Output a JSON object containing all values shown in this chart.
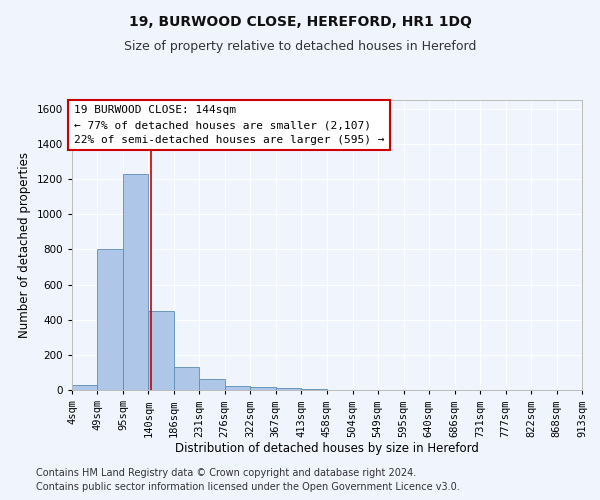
{
  "title": "19, BURWOOD CLOSE, HEREFORD, HR1 1DQ",
  "subtitle": "Size of property relative to detached houses in Hereford",
  "xlabel": "Distribution of detached houses by size in Hereford",
  "ylabel": "Number of detached properties",
  "bar_values": [
    27,
    800,
    1230,
    450,
    130,
    60,
    25,
    15,
    10,
    3,
    2,
    1,
    1,
    0,
    0,
    0,
    0,
    0,
    0,
    0
  ],
  "bin_edges": [
    4,
    49,
    95,
    140,
    186,
    231,
    276,
    322,
    367,
    413,
    458,
    504,
    549,
    595,
    640,
    686,
    731,
    777,
    822,
    868,
    913
  ],
  "x_tick_labels": [
    "4sqm",
    "49sqm",
    "95sqm",
    "140sqm",
    "186sqm",
    "231sqm",
    "276sqm",
    "322sqm",
    "367sqm",
    "413sqm",
    "458sqm",
    "504sqm",
    "549sqm",
    "595sqm",
    "640sqm",
    "686sqm",
    "731sqm",
    "777sqm",
    "822sqm",
    "868sqm",
    "913sqm"
  ],
  "bar_color": "#aec6e8",
  "bar_edge_color": "#5b8db8",
  "property_size": 144,
  "vline_color": "#cc0000",
  "ylim": [
    0,
    1650
  ],
  "yticks": [
    0,
    200,
    400,
    600,
    800,
    1000,
    1200,
    1400,
    1600
  ],
  "annotation_text": "19 BURWOOD CLOSE: 144sqm\n← 77% of detached houses are smaller (2,107)\n22% of semi-detached houses are larger (595) →",
  "annotation_box_color": "#ffffff",
  "annotation_box_edge": "#cc0000",
  "footer_line1": "Contains HM Land Registry data © Crown copyright and database right 2024.",
  "footer_line2": "Contains public sector information licensed under the Open Government Licence v3.0.",
  "background_color": "#f0f4fc",
  "grid_color": "#ffffff",
  "title_fontsize": 10,
  "subtitle_fontsize": 9,
  "axis_label_fontsize": 8.5,
  "tick_fontsize": 7.5,
  "annotation_fontsize": 8,
  "footer_fontsize": 7
}
